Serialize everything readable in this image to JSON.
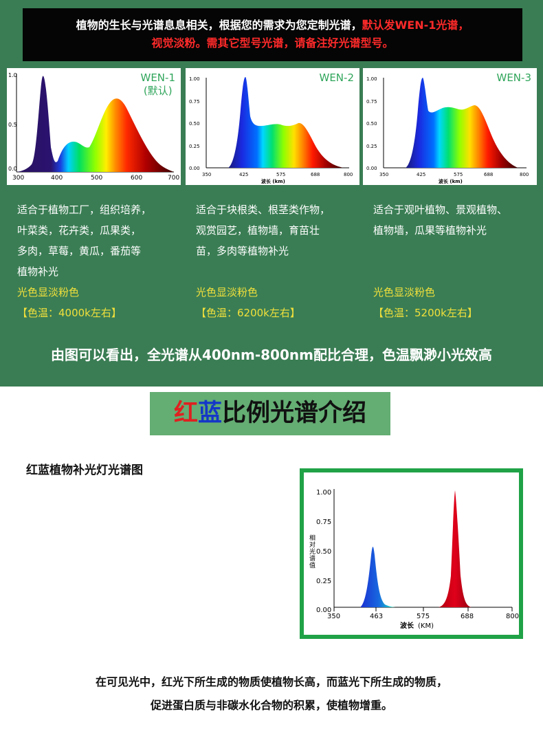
{
  "banner": {
    "line1_white": "植物的生长与光谱息息相关，根据您的需求为您定制光谱，",
    "line1_red": "默认发WEN-1光谱，",
    "line2_red": "视觉淡粉。需其它型号光谱，请备注好光谱型号。"
  },
  "cards": [
    {
      "name": "WEN-1",
      "note": "(默认)",
      "y_ticks": [
        "1.0",
        "0.5",
        "0.0"
      ],
      "x_ticks": [
        "300",
        "400",
        "500",
        "600",
        "700"
      ],
      "x_label": "",
      "desc_lines": [
        "适合于植物工厂，组织培养，",
        "叶菜类，花卉类，瓜果类，",
        "多肉，草莓，黄瓜，番茄等",
        "植物补光"
      ],
      "light_color": "光色显淡粉色",
      "color_temp": "【色温：4000k左右】"
    },
    {
      "name": "WEN-2",
      "note": "",
      "y_ticks": [
        "1.00",
        "0.75",
        "0.50",
        "0.25",
        "0.00"
      ],
      "x_ticks": [
        "350",
        "425",
        "575",
        "688",
        "800"
      ],
      "x_label": "波长 (km)",
      "desc_lines": [
        "适合于块根类、根茎类作物，",
        "观赏园艺，植物墙，育苗壮",
        "苗，多肉等植物补光"
      ],
      "light_color": "光色显淡粉色",
      "color_temp": "【色温：6200k左右】"
    },
    {
      "name": "WEN-3",
      "note": "",
      "y_ticks": [
        "1.00",
        "0.75",
        "0.50",
        "0.25",
        "0.00"
      ],
      "x_ticks": [
        "350",
        "425",
        "575",
        "688",
        "800"
      ],
      "x_label": "波长 (km)",
      "desc_lines": [
        "适合于观叶植物、景观植物、",
        "植物墙，瓜果等植物补光"
      ],
      "light_color": "光色显淡粉色",
      "color_temp": "【色温：5200k左右】"
    }
  ],
  "summary": "由图可以看出，全光谱从400nm-800nm配比合理，色温飘渺小光效高",
  "section_title": {
    "red": "红",
    "blue": "蓝",
    "rest": "比例光谱介绍"
  },
  "subtitle": "红蓝植物补光灯光谱图",
  "rb_chart": {
    "y_ticks": [
      "1.00",
      "0.75",
      "0.50",
      "0.25",
      "0.00"
    ],
    "x_ticks": [
      "350",
      "463",
      "575",
      "688",
      "800"
    ],
    "y_label": "相对光谱值",
    "x_label_line1": "波长",
    "x_label_line2": "(KM)"
  },
  "footer": {
    "line1": "在可见光中，红光下所生成的物质使植物长高，而蓝光下所生成的物质，",
    "line2": "促进蛋白质与非碳水化合物的积累，使植物增重。"
  },
  "colors": {
    "green_bg": "#3a7d54",
    "accent_red": "#ff2a2a",
    "yellow": "#f1e03b",
    "frame_green": "#20a247"
  }
}
